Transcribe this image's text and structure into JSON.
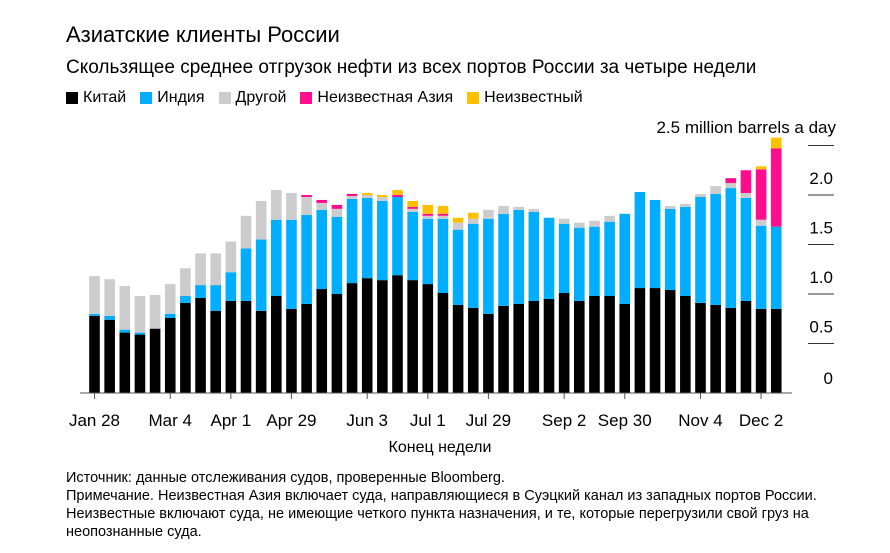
{
  "title": "Азиатские клиенты России",
  "subtitle": "Скользящее среднее отгрузок нефти из всех портов России за четыре недели",
  "footer": {
    "source": "Источник: данные отслеживания судов, проверенные Bloomberg.",
    "note": "Примечание. Неизвестная Азия включает суда, направляющиеся в Суэцкий канал из западных портов России. Неизвестные включают суда, не имеющие четкого пункта назначения, и те, которые перегрузили свой груз на неопознанные суда."
  },
  "chart_data": {
    "type": "bar",
    "stacked": true,
    "xlabel": "Конец недели",
    "ylabel": "2.5 million barrels a day",
    "ylim": [
      0,
      2.5
    ],
    "yticks": [
      "0",
      "0.5",
      "1.0",
      "1.5",
      "2.0"
    ],
    "ytick_values": [
      0,
      0.5,
      1.0,
      1.5,
      2.0
    ],
    "grid": false,
    "legend_position": "top-left",
    "xtick_labels": [
      {
        "index": 0,
        "label": "Jan 28"
      },
      {
        "index": 5,
        "label": "Mar 4"
      },
      {
        "index": 9,
        "label": "Apr 1"
      },
      {
        "index": 13,
        "label": "Apr 29"
      },
      {
        "index": 18,
        "label": "Jun 3"
      },
      {
        "index": 22,
        "label": "Jul 1"
      },
      {
        "index": 26,
        "label": "Jul 29"
      },
      {
        "index": 31,
        "label": "Sep 2"
      },
      {
        "index": 35,
        "label": "Sep 30"
      },
      {
        "index": 40,
        "label": "Nov 4"
      },
      {
        "index": 44,
        "label": "Dec 2"
      }
    ],
    "categories": [
      "Jan 28",
      "Feb 4",
      "Feb 11",
      "Feb 18",
      "Feb 25",
      "Mar 4",
      "Mar 11",
      "Mar 18",
      "Mar 25",
      "Apr 1",
      "Apr 8",
      "Apr 15",
      "Apr 22",
      "Apr 29",
      "May 6",
      "May 13",
      "May 20",
      "May 27",
      "Jun 3",
      "Jun 10",
      "Jun 17",
      "Jun 24",
      "Jul 1",
      "Jul 8",
      "Jul 15",
      "Jul 22",
      "Jul 29",
      "Aug 5",
      "Aug 12",
      "Aug 19",
      "Aug 26",
      "Sep 2",
      "Sep 9",
      "Sep 16",
      "Sep 23",
      "Sep 30",
      "Oct 7",
      "Oct 14",
      "Oct 21",
      "Oct 28",
      "Nov 4",
      "Nov 11",
      "Nov 18",
      "Nov 25",
      "Dec 2",
      "Dec 9"
    ],
    "series": [
      {
        "name": "Китай",
        "color": "#000000",
        "values": [
          0.78,
          0.74,
          0.61,
          0.59,
          0.65,
          0.76,
          0.91,
          0.96,
          0.83,
          0.93,
          0.93,
          0.83,
          0.98,
          0.85,
          0.9,
          1.05,
          1.0,
          1.11,
          1.16,
          1.14,
          1.19,
          1.14,
          1.1,
          1.01,
          0.89,
          0.86,
          0.8,
          0.88,
          0.9,
          0.93,
          0.95,
          1.01,
          0.93,
          0.98,
          0.98,
          0.9,
          1.06,
          1.06,
          1.04,
          0.98,
          0.91,
          0.89,
          0.86,
          0.93,
          0.85,
          0.85
        ]
      },
      {
        "name": "Индия",
        "color": "#00aeff",
        "values": [
          0.02,
          0.04,
          0.03,
          0.02,
          0,
          0.04,
          0.07,
          0.13,
          0.26,
          0.29,
          0.53,
          0.72,
          0.77,
          0.9,
          0.9,
          0.8,
          0.78,
          0.85,
          0.81,
          0.8,
          0.79,
          0.69,
          0.66,
          0.75,
          0.76,
          0.85,
          0.96,
          0.93,
          0.95,
          0.9,
          0.82,
          0.7,
          0.74,
          0.7,
          0.75,
          0.91,
          0.97,
          0.89,
          0.82,
          0.9,
          1.07,
          1.12,
          1.21,
          1.04,
          0.84,
          0.83
        ]
      },
      {
        "name": "Другой",
        "color": "#cccccc",
        "values": [
          0.38,
          0.37,
          0.44,
          0.37,
          0.34,
          0.3,
          0.28,
          0.32,
          0.32,
          0.31,
          0.33,
          0.39,
          0.3,
          0.27,
          0.18,
          0.07,
          0.08,
          0.03,
          0.03,
          0.04,
          0,
          0.03,
          0.03,
          0.03,
          0.07,
          0.05,
          0.09,
          0.08,
          0.03,
          0.03,
          0,
          0.05,
          0.05,
          0.06,
          0.06,
          0,
          0,
          0,
          0.03,
          0.03,
          0.03,
          0.08,
          0.05,
          0.05,
          0.06,
          0
        ]
      },
      {
        "name": "Неизвестная Азия",
        "color": "#ff0d8c",
        "values": [
          0,
          0,
          0,
          0,
          0,
          0,
          0,
          0,
          0,
          0,
          0,
          0,
          0,
          0,
          0.02,
          0.03,
          0.04,
          0.02,
          0,
          0,
          0.02,
          0.02,
          0.02,
          0.02,
          0,
          0,
          0,
          0,
          0,
          0,
          0,
          0,
          0,
          0,
          0,
          0,
          0,
          0,
          0,
          0,
          0,
          0,
          0.05,
          0.23,
          0.51,
          0.79
        ]
      },
      {
        "name": "Неизвестный",
        "color": "#ffc000",
        "values": [
          0,
          0,
          0,
          0,
          0,
          0,
          0,
          0,
          0,
          0,
          0,
          0,
          0,
          0,
          0,
          0,
          0,
          0,
          0.02,
          0.02,
          0.05,
          0.06,
          0.09,
          0.08,
          0.05,
          0.06,
          0,
          0,
          0,
          0,
          0,
          0,
          0,
          0,
          0,
          0,
          0,
          0,
          0,
          0,
          0,
          0,
          0,
          0,
          0.03,
          0.11
        ]
      }
    ]
  }
}
